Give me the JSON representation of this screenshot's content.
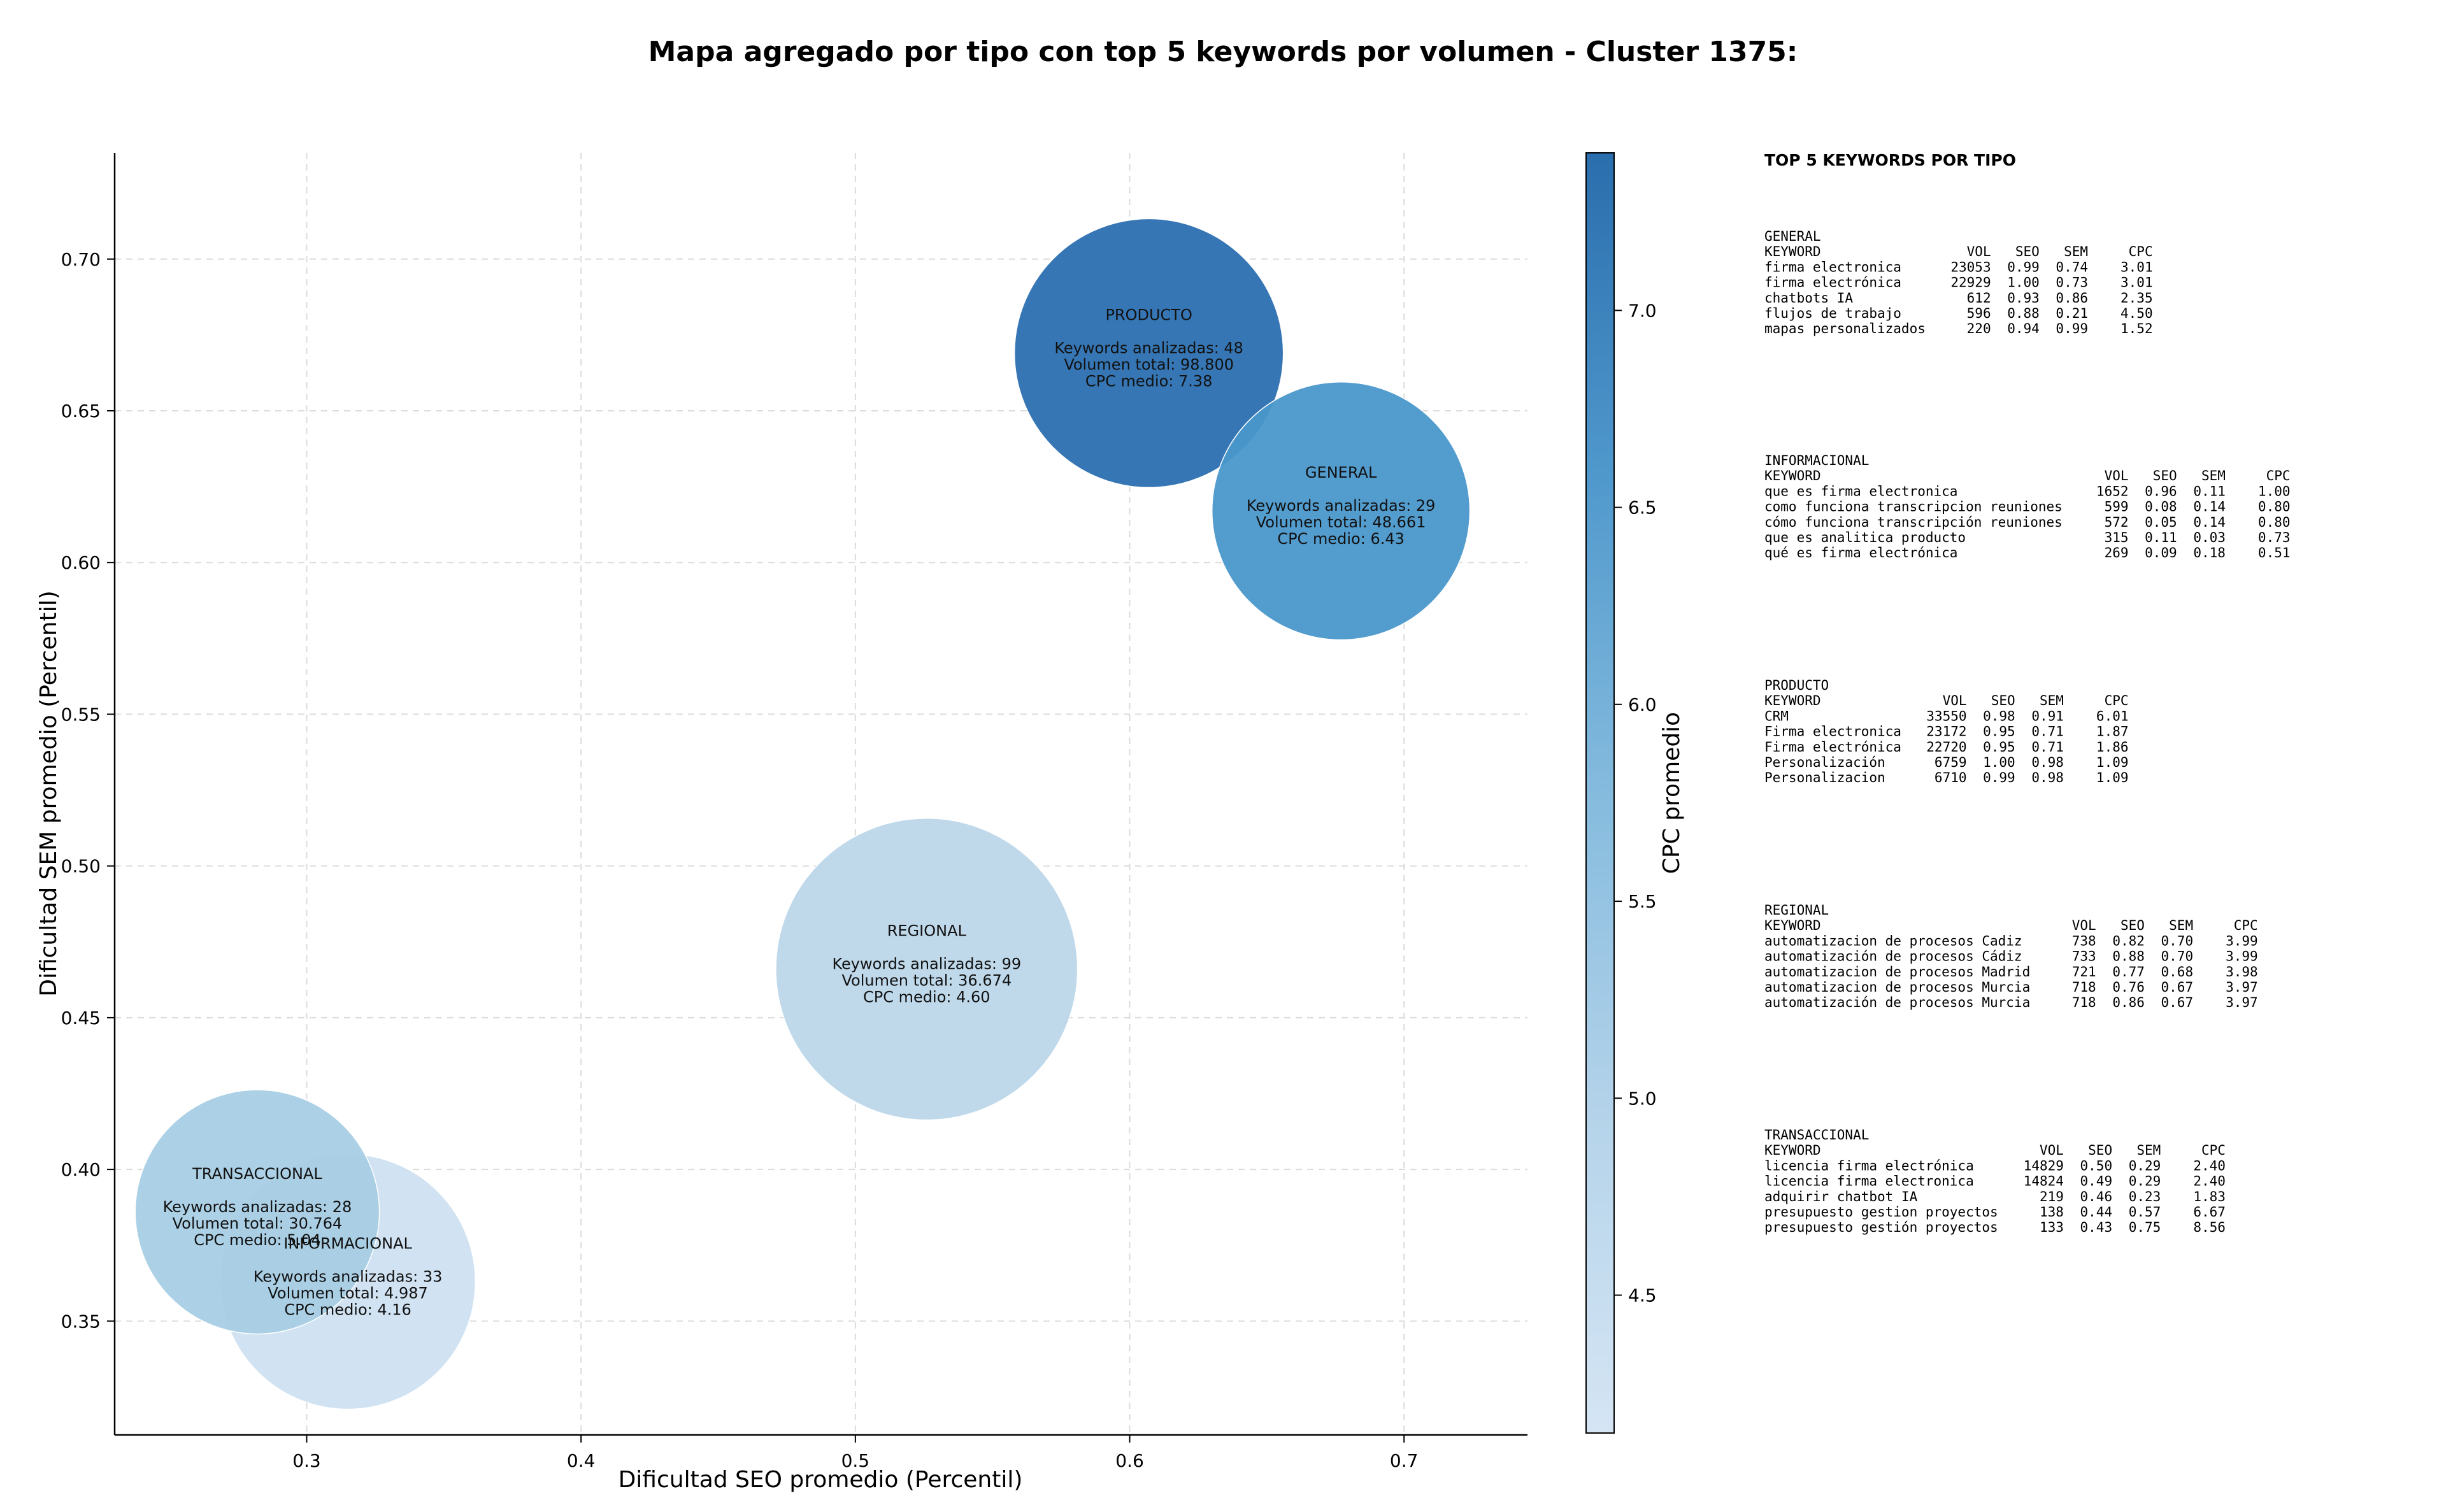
{
  "chart_data": {
    "type": "scatter",
    "title": "Mapa agregado por tipo con top 5 keywords por volumen - Cluster 1375:",
    "xlabel": "Dificultad SEO promedio (Percentil)",
    "ylabel": "Dificultad SEM promedio (Percentil)",
    "colorbar_label": "CPC promedio",
    "xlim": [
      0.23,
      0.745
    ],
    "ylim": [
      0.3125,
      0.735
    ],
    "x_ticks": [
      "0.3",
      "0.4",
      "0.5",
      "0.6",
      "0.7"
    ],
    "y_ticks": [
      "0.35",
      "0.40",
      "0.45",
      "0.50",
      "0.55",
      "0.60",
      "0.65",
      "0.70"
    ],
    "colorbar_range": [
      4.15,
      7.4
    ],
    "colorbar_ticks": [
      "4.5",
      "5.0",
      "5.5",
      "6.0",
      "6.5",
      "7.0"
    ],
    "grid": true,
    "points": [
      {
        "label": "INFORMACIONAL",
        "x": 0.315,
        "y": 0.363,
        "bubble_size": 0.0465,
        "cpc": 4.16,
        "lines": [
          "Keywords analizadas: 33",
          "Volumen total: 4.987",
          "CPC medio: 4.16"
        ],
        "color": "#cfe0f1"
      },
      {
        "label": "TRANSACCIONAL",
        "x": 0.282,
        "y": 0.386,
        "bubble_size": 0.0445,
        "cpc": 5.04,
        "lines": [
          "Keywords analizadas: 28",
          "Volumen total: 30.764",
          "CPC medio: 5.04"
        ],
        "color": "#a8cde4"
      },
      {
        "label": "REGIONAL",
        "x": 0.526,
        "y": 0.466,
        "bubble_size": 0.055,
        "cpc": 4.6,
        "lines": [
          "Keywords analizadas: 99",
          "Volumen total: 36.674",
          "CPC medio: 4.60"
        ],
        "color": "#bcd7ea"
      },
      {
        "label": "PRODUCTO",
        "x": 0.607,
        "y": 0.669,
        "bubble_size": 0.049,
        "cpc": 7.38,
        "lines": [
          "Keywords analizadas: 48",
          "Volumen total: 98.800",
          "CPC medio: 7.38"
        ],
        "color": "#2b6fb0"
      },
      {
        "label": "GENERAL",
        "x": 0.677,
        "y": 0.617,
        "bubble_size": 0.047,
        "cpc": 6.43,
        "lines": [
          "Keywords analizadas: 29",
          "Volumen total: 48.661",
          "CPC medio: 6.43"
        ],
        "color": "#4a97cb"
      }
    ]
  },
  "panel": {
    "heading": "TOP 5 KEYWORDS POR TIPO",
    "columns": [
      "KEYWORD",
      "VOL",
      "SEO",
      "SEM",
      "CPC"
    ],
    "groups": [
      {
        "name": "GENERAL",
        "rows": [
          [
            "firma electronica",
            "23053",
            "0.99",
            "0.74",
            "3.01"
          ],
          [
            "firma electrónica",
            "22929",
            "1.00",
            "0.73",
            "3.01"
          ],
          [
            "chatbots IA",
            "612",
            "0.93",
            "0.86",
            "2.35"
          ],
          [
            "flujos de trabajo",
            "596",
            "0.88",
            "0.21",
            "4.50"
          ],
          [
            "mapas personalizados",
            "220",
            "0.94",
            "0.99",
            "1.52"
          ]
        ]
      },
      {
        "name": "INFORMACIONAL",
        "rows": [
          [
            "que es firma electronica",
            "1652",
            "0.96",
            "0.11",
            "1.00"
          ],
          [
            "como funciona transcripcion reuniones",
            "599",
            "0.08",
            "0.14",
            "0.80"
          ],
          [
            "cómo funciona transcripción reuniones",
            "572",
            "0.05",
            "0.14",
            "0.80"
          ],
          [
            "que es analitica producto",
            "315",
            "0.11",
            "0.03",
            "0.73"
          ],
          [
            "qué es firma electrónica",
            "269",
            "0.09",
            "0.18",
            "0.51"
          ]
        ]
      },
      {
        "name": "PRODUCTO",
        "rows": [
          [
            "CRM",
            "33550",
            "0.98",
            "0.91",
            "6.01"
          ],
          [
            "Firma electronica",
            "23172",
            "0.95",
            "0.71",
            "1.87"
          ],
          [
            "Firma electrónica",
            "22720",
            "0.95",
            "0.71",
            "1.86"
          ],
          [
            "Personalización",
            "6759",
            "1.00",
            "0.98",
            "1.09"
          ],
          [
            "Personalizacion",
            "6710",
            "0.99",
            "0.98",
            "1.09"
          ]
        ]
      },
      {
        "name": "REGIONAL",
        "rows": [
          [
            "automatizacion de procesos Cadiz",
            "738",
            "0.82",
            "0.70",
            "3.99"
          ],
          [
            "automatización de procesos Cádiz",
            "733",
            "0.88",
            "0.70",
            "3.99"
          ],
          [
            "automatizacion de procesos Madrid",
            "721",
            "0.77",
            "0.68",
            "3.98"
          ],
          [
            "automatizacion de procesos Murcia",
            "718",
            "0.76",
            "0.67",
            "3.97"
          ],
          [
            "automatización de procesos Murcia",
            "718",
            "0.86",
            "0.67",
            "3.97"
          ]
        ]
      },
      {
        "name": "TRANSACCIONAL",
        "rows": [
          [
            "licencia firma electrónica",
            "14829",
            "0.50",
            "0.29",
            "2.40"
          ],
          [
            "licencia firma electronica",
            "14824",
            "0.49",
            "0.29",
            "2.40"
          ],
          [
            "adquirir chatbot IA",
            "219",
            "0.46",
            "0.23",
            "1.83"
          ],
          [
            "presupuesto gestion proyectos",
            "138",
            "0.44",
            "0.57",
            "6.67"
          ],
          [
            "presupuesto gestión proyectos",
            "133",
            "0.43",
            "0.75",
            "8.56"
          ]
        ]
      }
    ]
  }
}
